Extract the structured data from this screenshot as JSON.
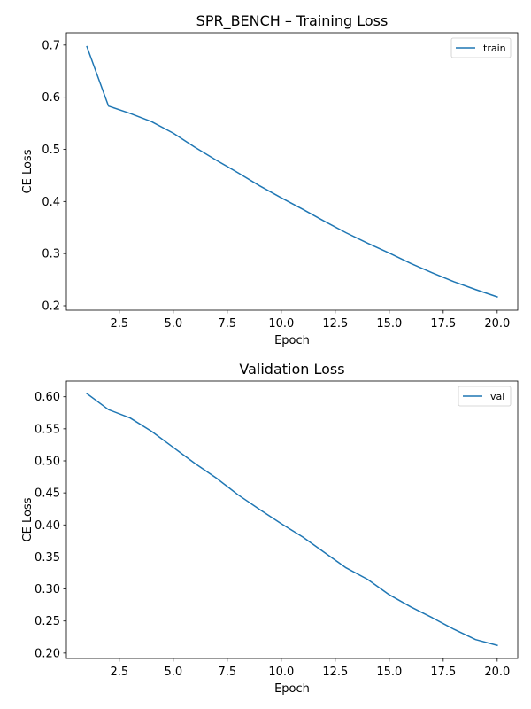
{
  "chart_data": [
    {
      "type": "line",
      "title": "SPR_BENCH – Training Loss",
      "xlabel": "Epoch",
      "ylabel": "CE Loss",
      "xlim": [
        0.05,
        20.95
      ],
      "ylim": [
        0.1915,
        0.7235
      ],
      "xticks": [
        2.5,
        5.0,
        7.5,
        10.0,
        12.5,
        15.0,
        17.5,
        20.0
      ],
      "xtick_labels": [
        "2.5",
        "5.0",
        "7.5",
        "10.0",
        "12.5",
        "15.0",
        "17.5",
        "20.0"
      ],
      "yticks": [
        0.2,
        0.3,
        0.4,
        0.5,
        0.6,
        0.7
      ],
      "ytick_labels": [
        "0.2",
        "0.3",
        "0.4",
        "0.5",
        "0.6",
        "0.7"
      ],
      "grid": false,
      "legend": "top-right",
      "color": "#1f77b4",
      "series": [
        {
          "name": "train",
          "x": [
            1,
            2,
            3,
            4,
            5,
            6,
            7,
            8,
            9,
            10,
            11,
            12,
            13,
            14,
            15,
            16,
            17,
            18,
            19,
            20
          ],
          "values": [
            0.697,
            0.583,
            0.569,
            0.553,
            0.531,
            0.504,
            0.479,
            0.455,
            0.43,
            0.407,
            0.385,
            0.362,
            0.34,
            0.32,
            0.301,
            0.281,
            0.263,
            0.246,
            0.231,
            0.217
          ]
        }
      ]
    },
    {
      "type": "line",
      "title": "Validation Loss",
      "xlabel": "Epoch",
      "ylabel": "CE Loss",
      "xlim": [
        0.05,
        20.95
      ],
      "ylim": [
        0.1915,
        0.6245
      ],
      "xticks": [
        2.5,
        5.0,
        7.5,
        10.0,
        12.5,
        15.0,
        17.5,
        20.0
      ],
      "xtick_labels": [
        "2.5",
        "5.0",
        "7.5",
        "10.0",
        "12.5",
        "15.0",
        "17.5",
        "20.0"
      ],
      "yticks": [
        0.2,
        0.25,
        0.3,
        0.35,
        0.4,
        0.45,
        0.5,
        0.55,
        0.6
      ],
      "ytick_labels": [
        "0.20",
        "0.25",
        "0.30",
        "0.35",
        "0.40",
        "0.45",
        "0.50",
        "0.55",
        "0.60"
      ],
      "grid": false,
      "legend": "top-right",
      "color": "#1f77b4",
      "series": [
        {
          "name": "val",
          "x": [
            1,
            2,
            3,
            4,
            5,
            6,
            7,
            8,
            9,
            10,
            11,
            12,
            13,
            14,
            15,
            16,
            17,
            18,
            19,
            20
          ],
          "values": [
            0.605,
            0.58,
            0.567,
            0.546,
            0.521,
            0.496,
            0.473,
            0.447,
            0.424,
            0.402,
            0.381,
            0.357,
            0.333,
            0.315,
            0.291,
            0.272,
            0.255,
            0.237,
            0.221,
            0.212
          ]
        }
      ]
    }
  ]
}
